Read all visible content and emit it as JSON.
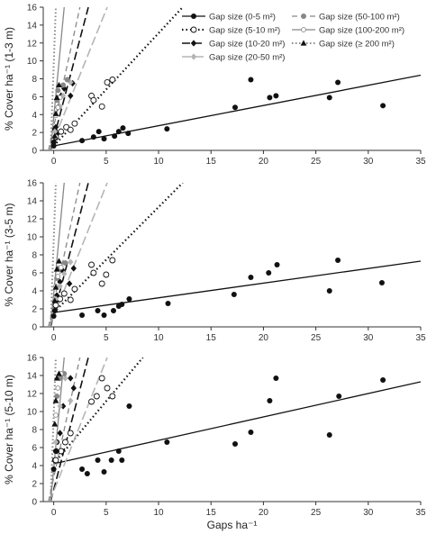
{
  "chart_data": [
    {
      "type": "scatter",
      "ylabel": "% Cover ha⁻¹ (1-3 m)",
      "xlim": [
        0,
        35
      ],
      "ylim": [
        0,
        16
      ],
      "xticks": [
        "0",
        "5",
        "10",
        "15",
        "20",
        "25",
        "30",
        "35"
      ],
      "yticks": [
        "0",
        "2",
        "4",
        "6",
        "8",
        "10",
        "12",
        "14",
        "16"
      ],
      "series": [
        {
          "name": "Gap size (0-5 m²)",
          "marker": "filled-circle",
          "points": [
            [
              0,
              0.5
            ],
            [
              0,
              0.9
            ],
            [
              0.2,
              1.4
            ],
            [
              0.3,
              1.9
            ],
            [
              0.1,
              2.3
            ],
            [
              2.7,
              1.1
            ],
            [
              3.8,
              1.5
            ],
            [
              4.3,
              2.1
            ],
            [
              4.8,
              1.3
            ],
            [
              5.8,
              1.6
            ],
            [
              6.2,
              2.1
            ],
            [
              6.6,
              2.5
            ],
            [
              7.1,
              1.9
            ],
            [
              10.8,
              2.4
            ],
            [
              17.3,
              4.8
            ],
            [
              18.8,
              7.9
            ],
            [
              20.6,
              5.9
            ],
            [
              21.2,
              6.1
            ],
            [
              26.3,
              5.9
            ],
            [
              27.1,
              7.6
            ],
            [
              31.4,
              5.0
            ]
          ],
          "fit": [
            [
              0,
              0.5
            ],
            [
              35,
              8.4
            ]
          ]
        },
        {
          "name": "Gap size (5-10 m²)",
          "marker": "open-circle",
          "points": [
            [
              0.2,
              1.5
            ],
            [
              0.7,
              2.1
            ],
            [
              1.2,
              2.6
            ],
            [
              1.6,
              2.3
            ],
            [
              2.0,
              3.0
            ],
            [
              3.6,
              6.1
            ],
            [
              3.8,
              5.6
            ],
            [
              4.6,
              4.9
            ],
            [
              5.1,
              7.6
            ],
            [
              5.6,
              7.9
            ]
          ],
          "fit": [
            [
              0,
              0.5
            ],
            [
              12.3,
              16
            ]
          ]
        },
        {
          "name": "Gap size (10-20 m²)",
          "marker": "filled-diamond",
          "points": [
            [
              0.2,
              2.6
            ],
            [
              0.4,
              4.8
            ],
            [
              0.7,
              6.1
            ],
            [
              1.0,
              6.9
            ],
            [
              1.6,
              6.1
            ],
            [
              1.8,
              7.5
            ]
          ],
          "fit": [
            [
              -0.3,
              0
            ],
            [
              3.3,
              16
            ]
          ]
        },
        {
          "name": "Gap size (20-50 m²)",
          "marker": "light-diamond",
          "points": [
            [
              0.1,
              2.1
            ],
            [
              0.6,
              4.9
            ],
            [
              0.9,
              6.1
            ],
            [
              1.6,
              7.6
            ]
          ],
          "fit": [
            [
              -0.4,
              0
            ],
            [
              5.1,
              16
            ]
          ]
        },
        {
          "name": "Gap size (50-100 m²)",
          "marker": "gray-circle",
          "points": [
            [
              0.3,
              5.6
            ],
            [
              0.4,
              6.7
            ],
            [
              0.9,
              7.3
            ],
            [
              1.3,
              7.9
            ]
          ],
          "fit": [
            [
              -0.5,
              0
            ],
            [
              2.5,
              16
            ]
          ]
        },
        {
          "name": "Gap size (100-200 m²)",
          "marker": "small-open-circle",
          "points": [
            [
              0.2,
              3.9
            ],
            [
              0.4,
              4.8
            ],
            [
              0.6,
              5.9
            ]
          ],
          "fit": [
            [
              -0.3,
              0
            ],
            [
              1.0,
              16
            ]
          ]
        },
        {
          "name": "Gap size (≥ 200 m²)",
          "marker": "triangle",
          "points": [
            [
              0.1,
              1.6
            ],
            [
              0.2,
              4.1
            ],
            [
              0.3,
              5.9
            ],
            [
              0.5,
              7.3
            ]
          ],
          "fit": [
            [
              -0.3,
              0
            ],
            [
              0.2,
              16
            ]
          ]
        }
      ],
      "legend": [
        [
          "Gap size (0-5 m²)",
          "Gap size (50-100 m²)"
        ],
        [
          "Gap size (5-10 m²)",
          "Gap size (100-200 m²)"
        ],
        [
          "Gap size (10-20 m²)",
          "Gap size (≥ 200 m²)"
        ],
        [
          "Gap size (20-50 m²)",
          ""
        ]
      ],
      "legend_position": "top-right"
    },
    {
      "type": "scatter",
      "ylabel": "% Cover ha⁻¹ (3-5 m)",
      "xlim": [
        0,
        35
      ],
      "ylim": [
        0,
        16
      ],
      "xticks": [
        "0",
        "5",
        "10",
        "15",
        "20",
        "25",
        "30",
        "35"
      ],
      "yticks": [
        "0",
        "2",
        "4",
        "6",
        "8",
        "10",
        "12",
        "14",
        "16"
      ],
      "series": [
        {
          "name": "Gap size (0-5 m²)",
          "marker": "filled-circle",
          "points": [
            [
              0,
              1.2
            ],
            [
              0.1,
              1.8
            ],
            [
              0.2,
              2.3
            ],
            [
              0.3,
              3.0
            ],
            [
              2.7,
              1.3
            ],
            [
              4.2,
              1.8
            ],
            [
              4.8,
              1.3
            ],
            [
              5.7,
              1.8
            ],
            [
              6.2,
              2.3
            ],
            [
              6.5,
              2.5
            ],
            [
              7.2,
              3.1
            ],
            [
              10.9,
              2.6
            ],
            [
              17.2,
              3.6
            ],
            [
              18.8,
              5.5
            ],
            [
              20.5,
              6.0
            ],
            [
              21.3,
              6.9
            ],
            [
              26.3,
              4.0
            ],
            [
              27.1,
              7.4
            ],
            [
              31.3,
              4.9
            ]
          ],
          "fit": [
            [
              0,
              1.6
            ],
            [
              35,
              7.3
            ]
          ]
        },
        {
          "name": "Gap size (5-10 m²)",
          "marker": "open-circle",
          "points": [
            [
              0.2,
              2.4
            ],
            [
              0.6,
              3.1
            ],
            [
              1.0,
              3.7
            ],
            [
              1.6,
              3.0
            ],
            [
              2.0,
              4.2
            ],
            [
              3.6,
              6.9
            ],
            [
              3.8,
              6.0
            ],
            [
              4.6,
              4.8
            ],
            [
              5.0,
              5.8
            ],
            [
              5.6,
              7.4
            ]
          ],
          "fit": [
            [
              0,
              1.6
            ],
            [
              12.3,
              16
            ]
          ]
        },
        {
          "name": "Gap size (10-20 m²)",
          "marker": "filled-diamond",
          "points": [
            [
              0.3,
              3.5
            ],
            [
              0.6,
              5.0
            ],
            [
              0.9,
              6.2
            ],
            [
              1.5,
              4.8
            ],
            [
              1.9,
              6.5
            ]
          ],
          "fit": [
            [
              -0.3,
              0
            ],
            [
              3.3,
              16
            ]
          ]
        },
        {
          "name": "Gap size (20-50 m²)",
          "marker": "light-diamond",
          "points": [
            [
              0.2,
              3.1
            ],
            [
              0.6,
              4.5
            ],
            [
              1.0,
              5.9
            ],
            [
              1.6,
              7.2
            ]
          ],
          "fit": [
            [
              -0.4,
              0
            ],
            [
              5.1,
              16
            ]
          ]
        },
        {
          "name": "Gap size (50-100 m²)",
          "marker": "gray-circle",
          "points": [
            [
              0.3,
              5.4
            ],
            [
              0.5,
              6.5
            ],
            [
              1.1,
              7.1
            ]
          ],
          "fit": [
            [
              -0.5,
              0
            ],
            [
              2.5,
              16
            ]
          ]
        },
        {
          "name": "Gap size (100-200 m²)",
          "marker": "small-open-circle",
          "points": [
            [
              0.2,
              4.5
            ],
            [
              0.4,
              5.6
            ],
            [
              0.7,
              6.6
            ]
          ],
          "fit": [
            [
              -0.3,
              0
            ],
            [
              1.0,
              16
            ]
          ]
        },
        {
          "name": "Gap size (≥ 200 m²)",
          "marker": "triangle",
          "points": [
            [
              0.1,
              2.9
            ],
            [
              0.2,
              4.4
            ],
            [
              0.3,
              6.4
            ],
            [
              0.5,
              7.3
            ]
          ],
          "fit": [
            [
              -0.3,
              0
            ],
            [
              0.2,
              16
            ]
          ]
        }
      ]
    },
    {
      "type": "scatter",
      "ylabel": "% Cover ha⁻¹ (5-10 m)",
      "xlabel": "Gaps ha⁻¹",
      "xlim": [
        0,
        35
      ],
      "ylim": [
        0,
        16
      ],
      "xticks": [
        "0",
        "5",
        "10",
        "15",
        "20",
        "25",
        "30",
        "35"
      ],
      "yticks": [
        "0",
        "2",
        "4",
        "6",
        "8",
        "10",
        "12",
        "14",
        "16"
      ],
      "series": [
        {
          "name": "Gap size (0-5 m²)",
          "marker": "filled-circle",
          "points": [
            [
              0,
              3.6
            ],
            [
              0.1,
              4.6
            ],
            [
              0.2,
              5.6
            ],
            [
              0.3,
              6.6
            ],
            [
              2.7,
              3.6
            ],
            [
              3.2,
              3.1
            ],
            [
              4.2,
              4.6
            ],
            [
              4.8,
              3.3
            ],
            [
              5.5,
              4.6
            ],
            [
              6.2,
              5.6
            ],
            [
              6.5,
              4.6
            ],
            [
              7.2,
              10.6
            ],
            [
              10.8,
              6.6
            ],
            [
              17.3,
              6.4
            ],
            [
              18.8,
              7.7
            ],
            [
              20.6,
              11.2
            ],
            [
              21.2,
              13.7
            ],
            [
              26.3,
              7.4
            ],
            [
              27.2,
              11.7
            ],
            [
              31.4,
              13.5
            ]
          ],
          "fit": [
            [
              0,
              4.2
            ],
            [
              35,
              13.3
            ]
          ]
        },
        {
          "name": "Gap size (5-10 m²)",
          "marker": "open-circle",
          "points": [
            [
              0.2,
              4.6
            ],
            [
              0.7,
              5.6
            ],
            [
              1.1,
              6.6
            ],
            [
              1.6,
              7.6
            ],
            [
              3.6,
              11.1
            ],
            [
              4.1,
              11.7
            ],
            [
              4.6,
              13.7
            ],
            [
              5.1,
              12.6
            ],
            [
              5.6,
              11.7
            ]
          ],
          "fit": [
            [
              0,
              4.2
            ],
            [
              8.5,
              16
            ]
          ]
        },
        {
          "name": "Gap size (10-20 m²)",
          "marker": "filled-diamond",
          "points": [
            [
              0.3,
              5.6
            ],
            [
              0.6,
              7.6
            ],
            [
              0.9,
              10.6
            ],
            [
              1.6,
              13.7
            ],
            [
              1.9,
              12.6
            ]
          ],
          "fit": [
            [
              -0.3,
              0
            ],
            [
              3.3,
              16
            ]
          ]
        },
        {
          "name": "Gap size (20-50 m²)",
          "marker": "light-diamond",
          "points": [
            [
              0.2,
              6.6
            ],
            [
              0.6,
              10.6
            ],
            [
              1.1,
              13.7
            ],
            [
              1.6,
              11.2
            ]
          ],
          "fit": [
            [
              -0.4,
              0
            ],
            [
              5.1,
              16
            ]
          ]
        },
        {
          "name": "Gap size (50-100 m²)",
          "marker": "gray-circle",
          "points": [
            [
              0.3,
              11.7
            ],
            [
              0.6,
              13.7
            ],
            [
              1.0,
              14.2
            ]
          ],
          "fit": [
            [
              -0.5,
              0
            ],
            [
              2.5,
              16
            ]
          ]
        },
        {
          "name": "Gap size (100-200 m²)",
          "marker": "small-open-circle",
          "points": [
            [
              0.2,
              9.6
            ],
            [
              0.4,
              12.6
            ],
            [
              0.7,
              14.2
            ]
          ],
          "fit": [
            [
              -0.3,
              0
            ],
            [
              1.0,
              16
            ]
          ]
        },
        {
          "name": "Gap size (≥ 200 m²)",
          "marker": "triangle",
          "points": [
            [
              0.1,
              8.6
            ],
            [
              0.2,
              11.2
            ],
            [
              0.3,
              13.7
            ],
            [
              0.5,
              14.2
            ]
          ],
          "fit": [
            [
              -0.3,
              0
            ],
            [
              0.2,
              16
            ]
          ]
        }
      ]
    }
  ],
  "colors": {
    "axis": "#333333",
    "filled": "#111111",
    "gray": "#888888",
    "light": "#b5b5b5"
  }
}
